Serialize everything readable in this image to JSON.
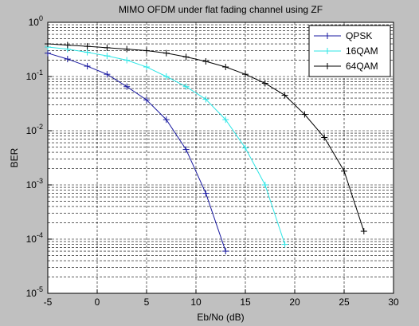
{
  "chart_data": {
    "type": "line",
    "title": "MIMO OFDM under flat fading channel using ZF",
    "x_label": "Eb/No (dB)",
    "y_label": "BER",
    "xlim": [
      -5,
      30
    ],
    "xticks": [
      -5,
      0,
      5,
      10,
      15,
      20,
      25,
      30
    ],
    "ylim": [
      1e-05,
      1
    ],
    "log_y": true,
    "grid": true,
    "legend_position": "upper-right",
    "yticks": [
      {
        "value": 1e-05,
        "label": "10^-5"
      },
      {
        "value": 0.0001,
        "label": "10^-4"
      },
      {
        "value": 0.001,
        "label": "10^-3"
      },
      {
        "value": 0.01,
        "label": "10^-2"
      },
      {
        "value": 0.1,
        "label": "10^-1"
      },
      {
        "value": 1,
        "label": "10^0"
      }
    ],
    "series": [
      {
        "name": "QPSK",
        "color": "#1a1aa0",
        "x": [
          -5,
          -3,
          -1,
          1,
          3,
          5,
          7,
          9,
          11,
          13
        ],
        "values": [
          0.27,
          0.21,
          0.155,
          0.11,
          0.065,
          0.037,
          0.016,
          0.0045,
          0.0007,
          6e-05
        ]
      },
      {
        "name": "16QAM",
        "color": "#2ee6e6",
        "x": [
          -5,
          -3,
          -1,
          1,
          3,
          5,
          7,
          9,
          11,
          13,
          15,
          17,
          19
        ],
        "values": [
          0.35,
          0.32,
          0.28,
          0.24,
          0.2,
          0.15,
          0.1,
          0.065,
          0.038,
          0.016,
          0.0048,
          0.001,
          8e-05
        ]
      },
      {
        "name": "64QAM",
        "color": "#000000",
        "x": [
          -5,
          -3,
          -1,
          1,
          3,
          5,
          7,
          9,
          11,
          13,
          15,
          17,
          19,
          21,
          23,
          25,
          27
        ],
        "values": [
          0.4,
          0.38,
          0.36,
          0.34,
          0.32,
          0.3,
          0.27,
          0.23,
          0.19,
          0.15,
          0.11,
          0.075,
          0.045,
          0.02,
          0.0075,
          0.0018,
          0.00014
        ]
      }
    ]
  }
}
